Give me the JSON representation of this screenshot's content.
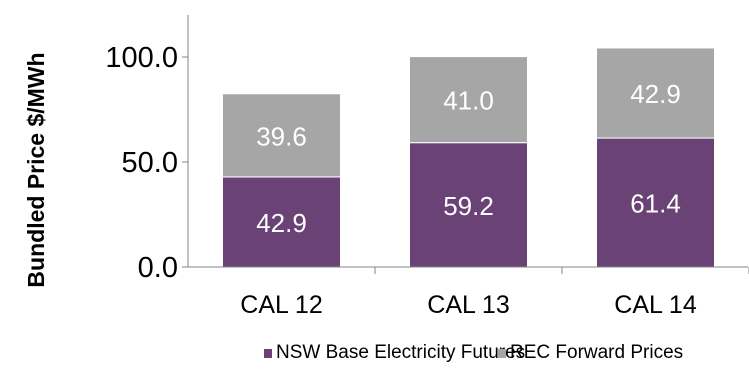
{
  "chart_data": {
    "type": "bar",
    "stacked": true,
    "title": "",
    "xlabel": "",
    "ylabel": "Bundled Price $/MWh",
    "ylim": [
      0,
      120
    ],
    "yticks": [
      "0.0",
      "50.0",
      "100.0"
    ],
    "ytick_values": [
      0,
      50,
      100
    ],
    "categories": [
      "CAL 12",
      "CAL 13",
      "CAL 14"
    ],
    "series": [
      {
        "name": "NSW Base Electricity Futures",
        "values": [
          42.9,
          59.2,
          61.4
        ],
        "labels": [
          "42.9",
          "59.2",
          "61.4"
        ],
        "color": "#6a4275"
      },
      {
        "name": "REC Forward Prices",
        "values": [
          39.6,
          41.0,
          42.9
        ],
        "labels": [
          "39.6",
          "41.0",
          "42.9"
        ],
        "color": "#a6a6a6"
      }
    ],
    "grid": false,
    "legend_position": "bottom"
  }
}
